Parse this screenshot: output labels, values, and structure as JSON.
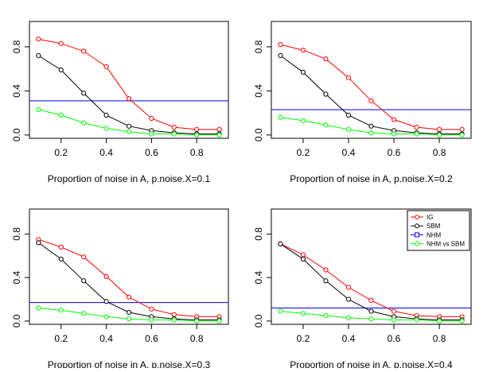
{
  "colors": {
    "IG": "#ff0000",
    "SBM": "#000000",
    "NHM": "#0000ff",
    "NHM vs SBM": "#00ff00"
  },
  "legend": {
    "entries": [
      "IG",
      "SBM",
      "NHM",
      "NHM vs SBM"
    ]
  },
  "chart_data": [
    {
      "type": "line",
      "xlabel": "Proportion of noise in A, p.noise.X=0.1",
      "ylabel": "",
      "xlim": [
        0.06,
        0.94
      ],
      "ylim": [
        -0.03,
        1.03
      ],
      "xticks": [
        "0.2",
        "0.4",
        "0.6",
        "0.8"
      ],
      "yticks": [
        "0.0",
        "0.4",
        "0.8"
      ],
      "x": [
        0.1,
        0.2,
        0.3,
        0.4,
        0.5,
        0.6,
        0.7,
        0.8,
        0.9
      ],
      "series": [
        {
          "name": "IG",
          "values": [
            0.87,
            0.83,
            0.76,
            0.62,
            0.33,
            0.15,
            0.07,
            0.05,
            0.05
          ]
        },
        {
          "name": "SBM",
          "values": [
            0.72,
            0.59,
            0.38,
            0.18,
            0.08,
            0.04,
            0.02,
            0.01,
            0.01
          ]
        },
        {
          "name": "NHM vs SBM",
          "values": [
            0.23,
            0.18,
            0.11,
            0.06,
            0.03,
            0.01,
            0.01,
            0.0,
            0.0
          ]
        }
      ],
      "hline": {
        "name": "NHM",
        "value": 0.31
      },
      "legend": false
    },
    {
      "type": "line",
      "xlabel": "Proportion of noise in A, p.noise.X=0.2",
      "ylabel": "",
      "xlim": [
        0.06,
        0.94
      ],
      "ylim": [
        -0.03,
        1.03
      ],
      "xticks": [
        "0.2",
        "0.4",
        "0.6",
        "0.8"
      ],
      "yticks": [
        "0.0",
        "0.4",
        "0.8"
      ],
      "x": [
        0.1,
        0.2,
        0.3,
        0.4,
        0.5,
        0.6,
        0.7,
        0.8,
        0.9
      ],
      "series": [
        {
          "name": "IG",
          "values": [
            0.82,
            0.77,
            0.69,
            0.52,
            0.31,
            0.14,
            0.07,
            0.05,
            0.05
          ]
        },
        {
          "name": "SBM",
          "values": [
            0.72,
            0.57,
            0.37,
            0.18,
            0.08,
            0.04,
            0.02,
            0.01,
            0.01
          ]
        },
        {
          "name": "NHM vs SBM",
          "values": [
            0.16,
            0.13,
            0.09,
            0.05,
            0.02,
            0.01,
            0.01,
            0.0,
            0.0
          ]
        }
      ],
      "hline": {
        "name": "NHM",
        "value": 0.23
      },
      "legend": false
    },
    {
      "type": "line",
      "xlabel": "Proportion of noise in A, p.noise.X=0.3",
      "ylabel": "",
      "xlim": [
        0.06,
        0.94
      ],
      "ylim": [
        -0.03,
        1.03
      ],
      "xticks": [
        "0.2",
        "0.4",
        "0.6",
        "0.8"
      ],
      "yticks": [
        "0.0",
        "0.4",
        "0.8"
      ],
      "x": [
        0.1,
        0.2,
        0.3,
        0.4,
        0.5,
        0.6,
        0.7,
        0.8,
        0.9
      ],
      "series": [
        {
          "name": "IG",
          "values": [
            0.75,
            0.68,
            0.59,
            0.41,
            0.22,
            0.11,
            0.06,
            0.04,
            0.04
          ]
        },
        {
          "name": "SBM",
          "values": [
            0.72,
            0.57,
            0.37,
            0.18,
            0.08,
            0.04,
            0.02,
            0.01,
            0.01
          ]
        },
        {
          "name": "NHM vs SBM",
          "values": [
            0.12,
            0.1,
            0.07,
            0.04,
            0.02,
            0.01,
            0.01,
            0.0,
            0.0
          ]
        }
      ],
      "hline": {
        "name": "NHM",
        "value": 0.17
      },
      "legend": false
    },
    {
      "type": "line",
      "xlabel": "Proportion of noise in A, p.noise.X=0.4",
      "ylabel": "",
      "xlim": [
        0.06,
        0.94
      ],
      "ylim": [
        -0.03,
        1.03
      ],
      "xticks": [
        "0.2",
        "0.4",
        "0.6",
        "0.8"
      ],
      "yticks": [
        "0.0",
        "0.4",
        "0.8"
      ],
      "x": [
        0.1,
        0.2,
        0.3,
        0.4,
        0.5,
        0.6,
        0.7,
        0.8,
        0.9
      ],
      "series": [
        {
          "name": "IG",
          "values": [
            0.71,
            0.61,
            0.47,
            0.31,
            0.19,
            0.09,
            0.05,
            0.04,
            0.04
          ]
        },
        {
          "name": "SBM",
          "values": [
            0.71,
            0.57,
            0.37,
            0.2,
            0.09,
            0.04,
            0.02,
            0.01,
            0.01
          ]
        },
        {
          "name": "NHM vs SBM",
          "values": [
            0.09,
            0.07,
            0.05,
            0.03,
            0.02,
            0.01,
            0.01,
            0.0,
            0.0
          ]
        }
      ],
      "hline": {
        "name": "NHM",
        "value": 0.12
      },
      "legend": true,
      "legend_position": "top-right"
    }
  ]
}
